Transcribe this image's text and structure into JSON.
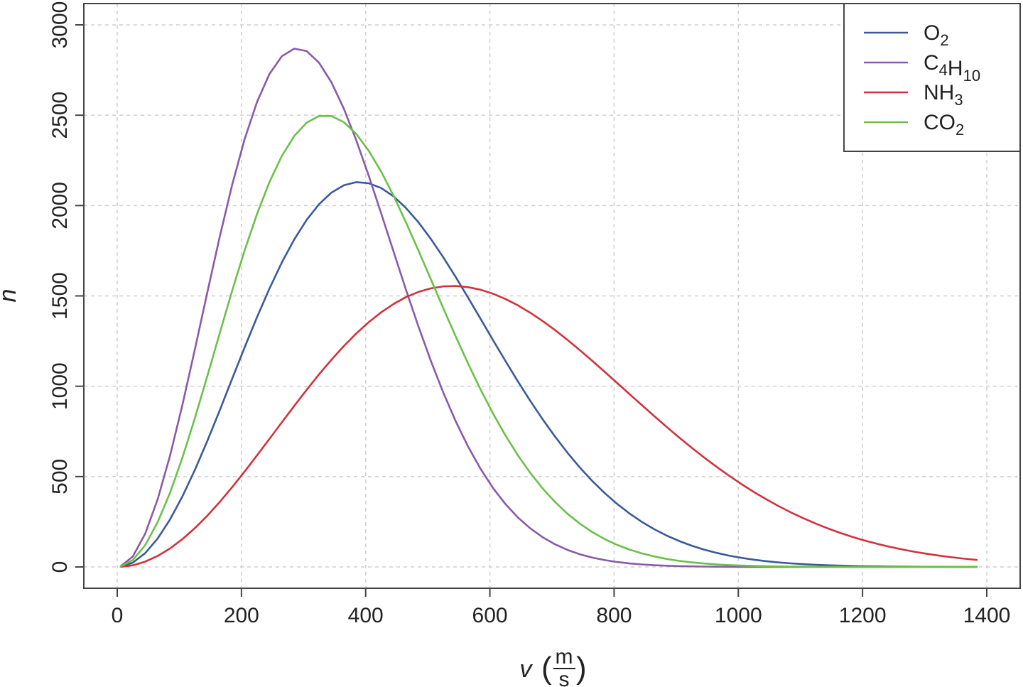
{
  "chart_data": {
    "type": "line",
    "xlabel": "v",
    "xlabel_unit_num": "m",
    "xlabel_unit_den": "s",
    "ylabel": "n",
    "xlim": [
      0,
      1400
    ],
    "ylim": [
      0,
      3000
    ],
    "x_ticks": [
      0,
      200,
      400,
      600,
      800,
      1000,
      1200,
      1400
    ],
    "y_ticks": [
      0,
      500,
      1000,
      1500,
      2000,
      2500,
      3000
    ],
    "x_tick_labels": [
      "0",
      "200",
      "400",
      "600",
      "800",
      "1000",
      "1200",
      "1400"
    ],
    "y_tick_labels": [
      "0",
      "500",
      "1000",
      "1500",
      "2000",
      "2500",
      "3000"
    ],
    "grid": true,
    "legend_position": "top-right",
    "x_sample_step": 20,
    "series": [
      {
        "name": "O2",
        "legend_base": "O",
        "legend_sub": "2",
        "color": "#3b5a9a",
        "peak_x": 390,
        "peak_y": 2130
      },
      {
        "name": "C4H10",
        "legend_parts": [
          {
            "text": "C",
            "sub": "4"
          },
          {
            "text": "H",
            "sub": "10"
          }
        ],
        "color": "#8a5aa8",
        "peak_x": 290,
        "peak_y": 2870
      },
      {
        "name": "NH3",
        "legend_base": "NH",
        "legend_sub": "3",
        "color": "#d0333b",
        "peak_x": 540,
        "peak_y": 1555
      },
      {
        "name": "CO2",
        "legend_base": "CO",
        "legend_sub": "2",
        "color": "#6cc04a",
        "peak_x": 335,
        "peak_y": 2500
      }
    ]
  }
}
